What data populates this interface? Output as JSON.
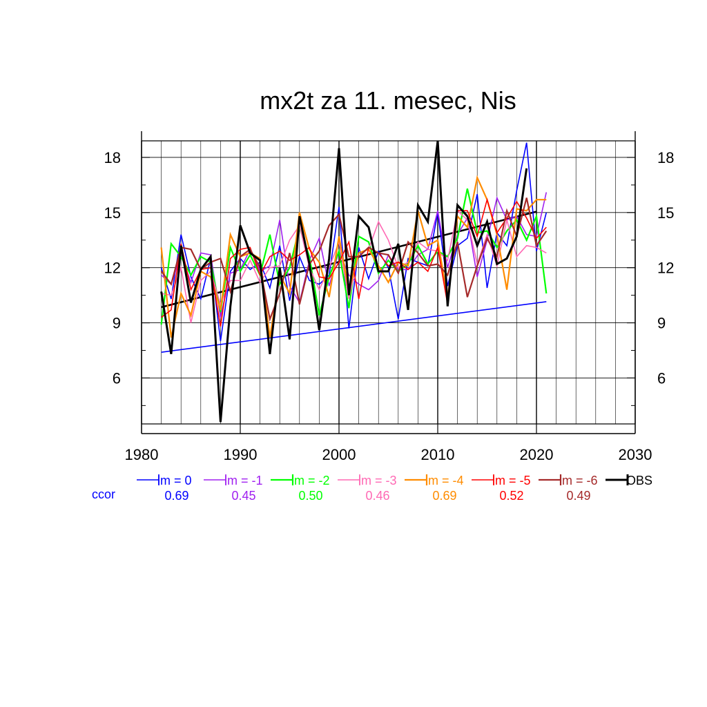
{
  "chart_data": {
    "type": "line",
    "title": "mx2t za 11. mesec, Nis",
    "xlabel": "",
    "ylabel": "",
    "xlim": [
      1980,
      2030
    ],
    "ylim": [
      3.5,
      18.9
    ],
    "x_ticks": [
      1980,
      1990,
      2000,
      2010,
      2020,
      2030
    ],
    "y_ticks": [
      6,
      9,
      12,
      15,
      18
    ],
    "x_tick_labels": [
      "1980",
      "1990",
      "2000",
      "2010",
      "2020",
      "2030"
    ],
    "y_tick_labels": [
      "6",
      "9",
      "12",
      "15",
      "18"
    ],
    "grid": true,
    "legend_position": "bottom",
    "ccor_label": "ccor",
    "x": [
      1982,
      1983,
      1984,
      1985,
      1986,
      1987,
      1988,
      1989,
      1990,
      1991,
      1992,
      1993,
      1994,
      1995,
      1996,
      1997,
      1998,
      1999,
      2000,
      2001,
      2002,
      2003,
      2004,
      2005,
      2006,
      2007,
      2008,
      2009,
      2010,
      2011,
      2012,
      2013,
      2014,
      2015,
      2016,
      2017,
      2018,
      2019,
      2020,
      2021
    ],
    "series": [
      {
        "name": "lm = 0",
        "ccor": "0.69",
        "color": "#0000ff",
        "width": 1.6,
        "values": [
          12.0,
          10.3,
          13.8,
          11.5,
          10.3,
          12.5,
          8.0,
          11.8,
          12.5,
          11.9,
          12.3,
          10.9,
          13.2,
          10.2,
          12.6,
          11.3,
          11.1,
          11.6,
          15.3,
          8.7,
          13.1,
          11.4,
          12.9,
          12.0,
          9.2,
          12.5,
          12.3,
          12.1,
          15.0,
          11.0,
          13.2,
          13.6,
          16.0,
          10.9,
          13.9,
          13.2,
          16.2,
          18.8,
          12.9,
          15.0
        ]
      },
      {
        "name": "lm = -1",
        "ccor": "0.45",
        "color": "#a020f0",
        "width": 1.6,
        "values": [
          11.6,
          11.1,
          12.7,
          11.2,
          12.8,
          12.7,
          9.3,
          11.7,
          11.9,
          13.0,
          11.8,
          12.1,
          14.6,
          11.0,
          10.1,
          12.4,
          13.6,
          11.0,
          12.9,
          11.6,
          11.1,
          10.8,
          11.3,
          12.7,
          11.9,
          11.9,
          12.7,
          13.0,
          15.1,
          12.0,
          13.8,
          14.7,
          11.5,
          13.5,
          15.8,
          14.6,
          14.8,
          13.8,
          13.7,
          16.1
        ]
      },
      {
        "name": "lm = -2",
        "ccor": "0.50",
        "color": "#00ff00",
        "width": 2.2,
        "values": [
          8.9,
          13.3,
          12.6,
          11.6,
          12.6,
          12.3,
          9.6,
          13.1,
          11.8,
          12.7,
          11.6,
          13.8,
          11.1,
          12.0,
          14.2,
          12.6,
          9.4,
          11.5,
          12.9,
          9.8,
          13.7,
          13.4,
          11.7,
          12.4,
          11.8,
          12.2,
          13.2,
          12.2,
          12.9,
          12.6,
          13.6,
          16.3,
          13.9,
          14.0,
          13.1,
          14.0,
          14.6,
          13.5,
          14.8,
          10.6
        ]
      },
      {
        "name": "lm = -3",
        "ccor": "0.46",
        "color": "#ff69b4",
        "width": 1.6,
        "values": [
          10.6,
          10.5,
          12.0,
          9.0,
          11.3,
          11.8,
          10.0,
          11.3,
          11.3,
          12.4,
          11.2,
          12.0,
          12.1,
          13.5,
          14.3,
          12.0,
          10.8,
          12.0,
          13.4,
          10.3,
          12.8,
          13.0,
          14.5,
          13.5,
          12.0,
          12.3,
          13.4,
          13.0,
          12.9,
          12.4,
          15.1,
          14.6,
          12.2,
          13.8,
          12.1,
          14.6,
          12.6,
          13.2,
          13.1,
          12.8
        ]
      },
      {
        "name": "lm = -4",
        "ccor": "0.69",
        "color": "#ff8c00",
        "width": 2.2,
        "values": [
          13.1,
          8.2,
          10.6,
          9.4,
          11.8,
          11.5,
          9.7,
          13.8,
          12.6,
          12.8,
          12.5,
          8.2,
          11.6,
          10.6,
          15.0,
          13.0,
          12.3,
          10.4,
          13.7,
          10.7,
          12.8,
          13.0,
          12.1,
          11.2,
          12.3,
          12.1,
          15.1,
          13.2,
          13.5,
          10.3,
          14.8,
          14.2,
          16.9,
          15.7,
          13.8,
          10.8,
          15.2,
          15.1,
          15.7,
          15.7
        ]
      },
      {
        "name": "lm = -5",
        "ccor": "0.52",
        "color": "#ff0000",
        "width": 1.6,
        "values": [
          9.3,
          9.7,
          13.3,
          10.8,
          11.9,
          12.0,
          8.8,
          12.5,
          13.0,
          13.1,
          11.6,
          12.6,
          12.9,
          12.4,
          12.7,
          13.1,
          11.5,
          11.4,
          12.3,
          13.4,
          10.3,
          13.1,
          12.8,
          12.1,
          12.3,
          11.9,
          12.3,
          11.8,
          13.1,
          10.0,
          15.1,
          15.1,
          13.7,
          15.7,
          13.9,
          14.7,
          15.6,
          14.7,
          13.6,
          14.2
        ]
      },
      {
        "name": "lm = -6",
        "ccor": "0.49",
        "color": "#a52a2a",
        "width": 2.2,
        "values": [
          11.8,
          11.1,
          13.1,
          13.0,
          11.9,
          12.3,
          12.5,
          10.7,
          12.6,
          13.0,
          12.0,
          9.2,
          10.6,
          12.8,
          10.0,
          12.2,
          12.9,
          14.3,
          14.9,
          12.6,
          12.6,
          13.1,
          12.8,
          12.7,
          11.7,
          13.4,
          12.8,
          12.1,
          12.2,
          11.6,
          13.4,
          10.4,
          12.1,
          13.6,
          12.6,
          15.1,
          13.7,
          15.8,
          13.2,
          14.0
        ]
      },
      {
        "name": "OBS",
        "ccor": "",
        "color": "#000000",
        "width": 3.0,
        "values": [
          10.7,
          7.3,
          13.2,
          10.1,
          11.9,
          12.6,
          3.6,
          9.9,
          14.3,
          12.8,
          12.4,
          7.3,
          12.0,
          8.1,
          14.8,
          12.2,
          8.6,
          12.5,
          18.5,
          10.5,
          14.8,
          14.2,
          11.8,
          11.8,
          13.3,
          9.7,
          15.4,
          14.5,
          18.9,
          9.9,
          15.4,
          14.8,
          13.2,
          14.5,
          12.2,
          12.5,
          13.7,
          17.4,
          null,
          null
        ]
      }
    ],
    "trend_lines": [
      {
        "name": "OBS trend",
        "color": "#000000",
        "width": 2.6,
        "x": [
          1982,
          2020
        ],
        "y": [
          9.85,
          15.05
        ]
      },
      {
        "name": "lm = 0 trend",
        "color": "#0000ff",
        "width": 1.6,
        "x": [
          1982,
          2021
        ],
        "y": [
          7.4,
          10.15
        ]
      }
    ]
  }
}
